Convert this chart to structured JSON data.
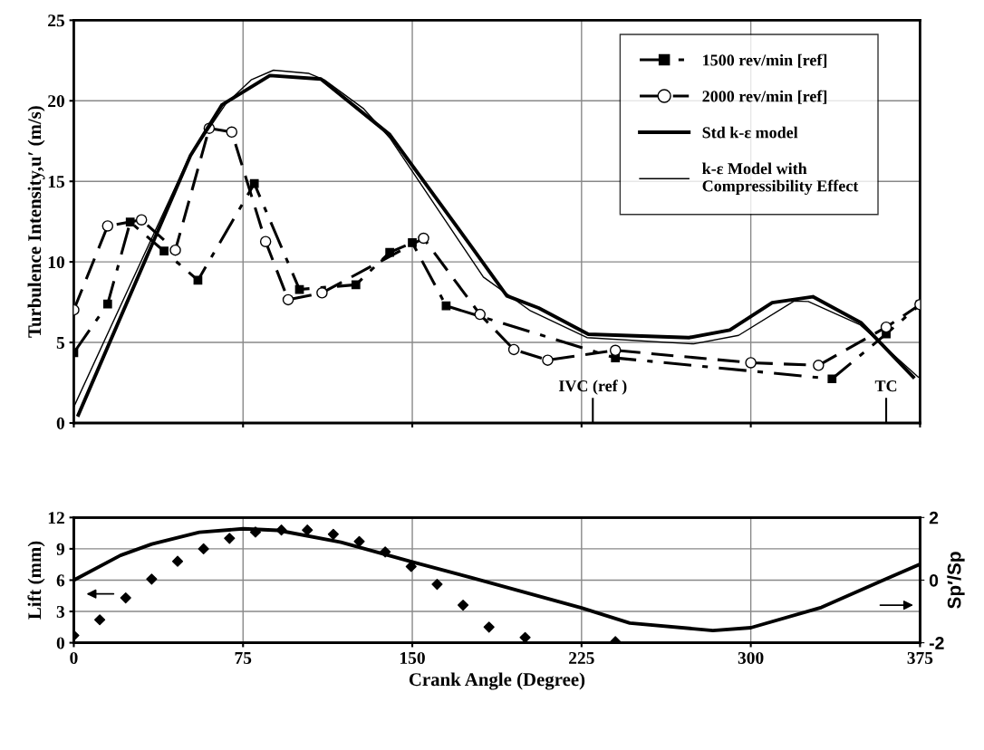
{
  "chart_data": [
    {
      "type": "line",
      "ylabel": "Turbulence Intensity,u′ (m/s)",
      "xlim": [
        0,
        375
      ],
      "xticks": [
        0,
        75,
        150,
        225,
        300,
        375
      ],
      "ylim": [
        0,
        25
      ],
      "yticks": [
        0,
        5,
        10,
        15,
        20,
        25
      ],
      "tick_labels": "y",
      "grid": true,
      "legend": "top right",
      "series": [
        {
          "name": "1500 rev/min [ref]",
          "color": "#000000",
          "marker": "square",
          "line_style": "dashdot",
          "x": [
            0,
            15,
            25,
            40,
            55,
            80,
            100,
            125,
            140,
            150,
            165,
            240,
            336,
            360,
            375
          ],
          "values": [
            4.36,
            7.39,
            12.47,
            10.67,
            8.86,
            14.86,
            8.29,
            8.58,
            10.59,
            11.19,
            7.27,
            4.04,
            2.74,
            5.53,
            7.35
          ]
        },
        {
          "name": "2000 rev/min [ref]",
          "color": "#000000",
          "marker": "circle",
          "line_style": "dashed",
          "x": [
            0,
            15,
            30,
            45,
            60,
            70,
            85,
            95,
            110,
            155,
            180,
            195,
            210,
            240,
            300,
            330,
            360,
            375
          ],
          "values": [
            7.02,
            12.23,
            12.61,
            10.73,
            18.29,
            18.06,
            11.26,
            7.65,
            8.08,
            11.47,
            6.74,
            4.56,
            3.9,
            4.51,
            3.74,
            3.58,
            5.95,
            7.35
          ]
        },
        {
          "name": "Std k-ε model",
          "color": "#000000",
          "marker": "none",
          "line_style": "solid",
          "x": [
            2,
            51.7,
            65.6,
            86.9,
            109.5,
            140,
            176,
            191.9,
            206,
            228,
            272.6,
            290.7,
            309.5,
            327.5,
            348.8,
            372
          ],
          "values": [
            0.5,
            16.6,
            19.74,
            21.57,
            21.35,
            17.9,
            10.99,
            7.89,
            7.14,
            5.51,
            5.3,
            5.77,
            7.47,
            7.84,
            6.23,
            2.85
          ]
        },
        {
          "name": "k-ε Model with\nCompressibility Effect",
          "color": "#000000",
          "marker": "none",
          "line_style": "solid",
          "x": [
            0,
            50.8,
            67.3,
            78.6,
            88.5,
            104.2,
            111,
            128.5,
            140,
            181.5,
            202.4,
            227.4,
            274.7,
            294.6,
            319.2,
            325.5,
            348.5,
            374.2
          ],
          "values": [
            1.0,
            16.4,
            19.8,
            21.3,
            21.9,
            21.7,
            21.3,
            19.5,
            17.7,
            9.06,
            6.96,
            5.3,
            4.91,
            5.44,
            7.57,
            7.54,
            6.09,
            2.85
          ]
        }
      ],
      "ref_lines": [
        {
          "axis": "x",
          "value": 230,
          "label": "IVC (ref )"
        },
        {
          "axis": "x",
          "value": 360,
          "label": "TC"
        }
      ]
    },
    {
      "type": "scatter",
      "xlabel": "Crank Angle (Degree)",
      "ylabel": "Lift (mm)",
      "y2label": "Sp′/Sp",
      "xlim": [
        0,
        375
      ],
      "xticks": [
        0,
        75,
        150,
        225,
        300,
        375
      ],
      "ylim": [
        0,
        12
      ],
      "yticks": [
        0,
        3,
        6,
        9,
        12
      ],
      "y2lim": [
        -2,
        2
      ],
      "y2ticks": [
        -2,
        0,
        2
      ],
      "grid": true,
      "series": [
        {
          "color": "#000000",
          "marker": "diamond",
          "x": [
            0,
            11.5,
            23,
            34.5,
            46,
            57.5,
            69,
            80.5,
            92,
            103.5,
            115,
            126.5,
            138,
            149.5,
            161,
            172.5,
            184,
            200,
            240
          ],
          "values": [
            0.7,
            2.2,
            4.3,
            6.1,
            7.8,
            9.0,
            10.0,
            10.6,
            10.8,
            10.8,
            10.4,
            9.7,
            8.7,
            7.3,
            5.6,
            3.6,
            1.5,
            0.5,
            0.1
          ]
        },
        {
          "type": "line",
          "axis": "y2",
          "color": "#000000",
          "marker": "none",
          "x": [
            0,
            20.7,
            34.6,
            55.6,
            75.1,
            90.5,
            118.4,
            150,
            176,
            225,
            246.4,
            283.2,
            300,
            331.3,
            359.6,
            375
          ],
          "values": [
            0,
            0.79,
            1.15,
            1.53,
            1.64,
            1.59,
            1.21,
            0.58,
            0.08,
            -0.89,
            -1.37,
            -1.61,
            -1.52,
            -0.87,
            0.03,
            0.51
          ]
        }
      ]
    }
  ]
}
